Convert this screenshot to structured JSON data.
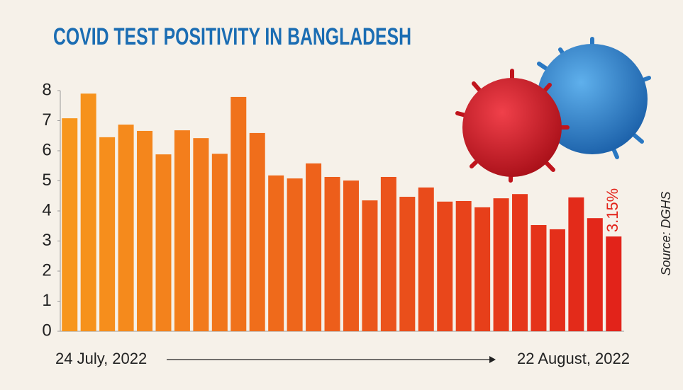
{
  "chart_data": {
    "type": "bar",
    "title": "COVID TEST POSITIVITY IN BANGLADESH",
    "source": "Source: DGHS",
    "categories": [
      "24 July, 2022",
      null,
      null,
      null,
      null,
      null,
      null,
      null,
      null,
      null,
      null,
      null,
      null,
      null,
      null,
      null,
      null,
      null,
      null,
      null,
      null,
      null,
      null,
      null,
      null,
      null,
      null,
      null,
      null,
      "22 August, 2022"
    ],
    "values": [
      7.08,
      7.9,
      6.45,
      6.87,
      6.66,
      5.88,
      6.68,
      6.42,
      5.9,
      7.79,
      6.59,
      5.18,
      5.08,
      5.58,
      5.13,
      5.01,
      4.35,
      5.13,
      4.47,
      4.78,
      4.31,
      4.33,
      4.12,
      4.42,
      4.56,
      3.53,
      3.39,
      4.45,
      3.76,
      3.15
    ],
    "value_labels": [
      null,
      null,
      null,
      null,
      null,
      null,
      null,
      null,
      null,
      null,
      null,
      null,
      null,
      null,
      null,
      null,
      null,
      null,
      null,
      null,
      null,
      null,
      null,
      null,
      null,
      null,
      null,
      null,
      null,
      "3.15%"
    ],
    "color_start": "#f7961c",
    "color_end": "#e2231a",
    "label_color": "#e2231a",
    "ylim": [
      0,
      8
    ],
    "yticks": [
      0,
      1,
      2,
      3,
      4,
      5,
      6,
      7,
      8
    ],
    "grid": false
  }
}
